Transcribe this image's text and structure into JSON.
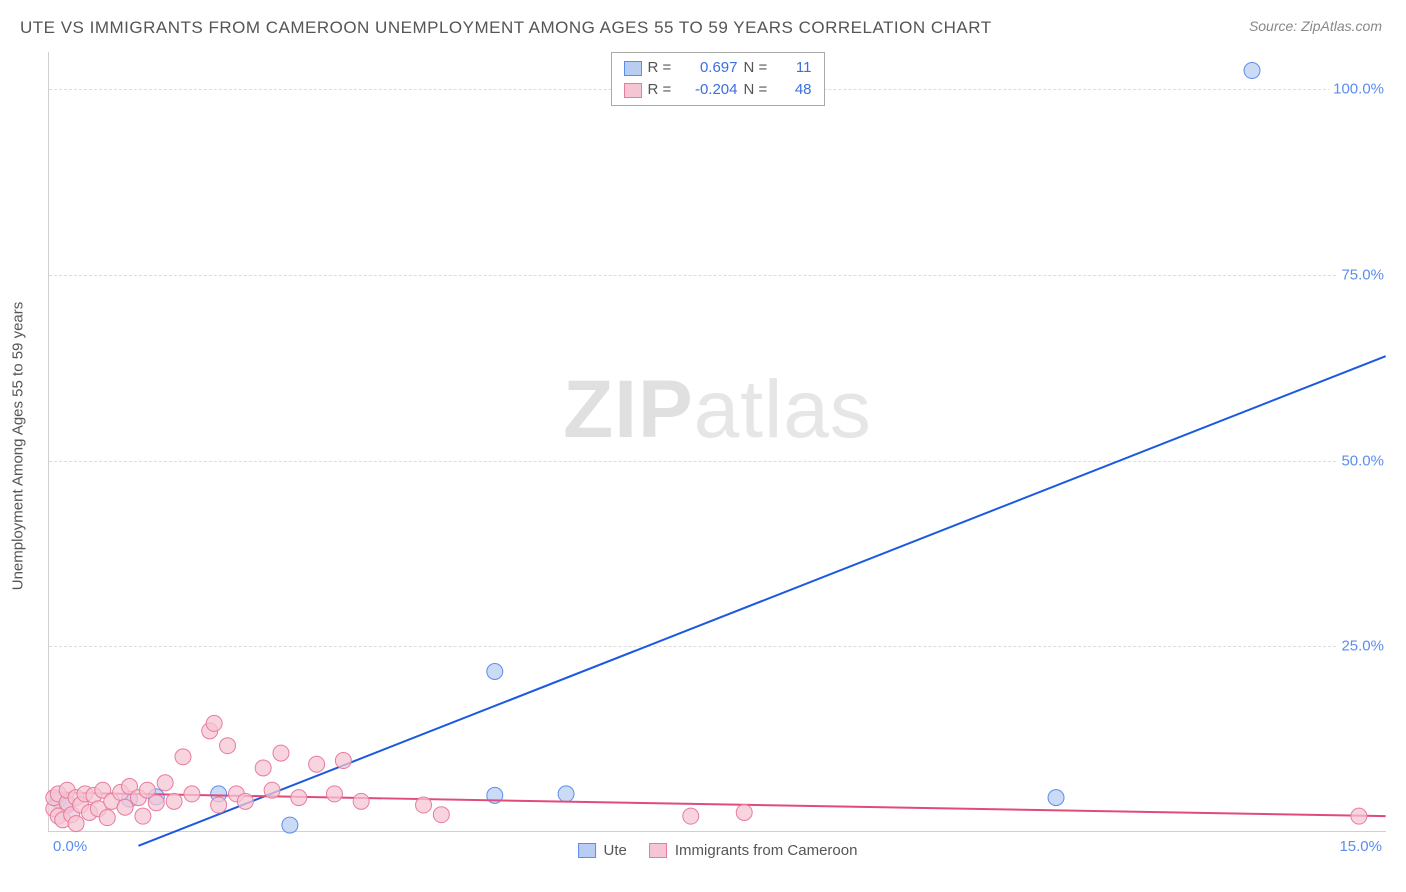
{
  "title": "UTE VS IMMIGRANTS FROM CAMEROON UNEMPLOYMENT AMONG AGES 55 TO 59 YEARS CORRELATION CHART",
  "source": "Source: ZipAtlas.com",
  "ylabel": "Unemployment Among Ages 55 to 59 years",
  "watermark_a": "ZIP",
  "watermark_b": "atlas",
  "chart": {
    "type": "scatter-regression",
    "xlim": [
      0,
      15
    ],
    "ylim": [
      0,
      105
    ],
    "yticks": [
      25,
      50,
      75,
      100
    ],
    "ytick_labels": [
      "25.0%",
      "50.0%",
      "75.0%",
      "100.0%"
    ],
    "xtick_min_label": "0.0%",
    "xtick_max_label": "15.0%",
    "background": "#ffffff",
    "grid_color": "#dcdcdc",
    "axis_color": "#d0d0d0",
    "tick_label_color": "#5b8def"
  },
  "series": [
    {
      "name": "Ute",
      "color_fill": "#b9cdf2",
      "color_stroke": "#5b8def",
      "line_color": "#1b5ae0",
      "line_width": 2,
      "marker_r": 8,
      "R": "0.697",
      "N": "11",
      "reg_line": {
        "x1": 1.0,
        "y1": -2,
        "x2": 15.0,
        "y2": 64
      },
      "points": [
        {
          "x": 0.1,
          "y": 4.2
        },
        {
          "x": 0.2,
          "y": 3.5
        },
        {
          "x": 0.9,
          "y": 4.3
        },
        {
          "x": 1.2,
          "y": 4.6
        },
        {
          "x": 1.9,
          "y": 5.0
        },
        {
          "x": 2.7,
          "y": 0.8
        },
        {
          "x": 5.0,
          "y": 4.8
        },
        {
          "x": 5.0,
          "y": 21.5
        },
        {
          "x": 5.8,
          "y": 5.0
        },
        {
          "x": 11.3,
          "y": 4.5
        },
        {
          "x": 13.5,
          "y": 102.5
        }
      ]
    },
    {
      "name": "Immigrants from Cameroon",
      "color_fill": "#f6c5d3",
      "color_stroke": "#e87ba0",
      "line_color": "#e04b7a",
      "line_width": 2,
      "marker_r": 8,
      "R": "-0.204",
      "N": "48",
      "reg_line": {
        "x1": 0,
        "y1": 5.2,
        "x2": 15.0,
        "y2": 2.0
      },
      "points": [
        {
          "x": 0.05,
          "y": 3.0
        },
        {
          "x": 0.05,
          "y": 4.5
        },
        {
          "x": 0.1,
          "y": 2.0
        },
        {
          "x": 0.1,
          "y": 5.0
        },
        {
          "x": 0.15,
          "y": 1.5
        },
        {
          "x": 0.2,
          "y": 3.8
        },
        {
          "x": 0.2,
          "y": 5.5
        },
        {
          "x": 0.25,
          "y": 2.2
        },
        {
          "x": 0.3,
          "y": 4.5
        },
        {
          "x": 0.3,
          "y": 1.0
        },
        {
          "x": 0.35,
          "y": 3.5
        },
        {
          "x": 0.4,
          "y": 5.0
        },
        {
          "x": 0.45,
          "y": 2.5
        },
        {
          "x": 0.5,
          "y": 4.8
        },
        {
          "x": 0.55,
          "y": 3.0
        },
        {
          "x": 0.6,
          "y": 5.5
        },
        {
          "x": 0.65,
          "y": 1.8
        },
        {
          "x": 0.7,
          "y": 4.0
        },
        {
          "x": 0.8,
          "y": 5.2
        },
        {
          "x": 0.85,
          "y": 3.2
        },
        {
          "x": 0.9,
          "y": 6.0
        },
        {
          "x": 1.0,
          "y": 4.5
        },
        {
          "x": 1.05,
          "y": 2.0
        },
        {
          "x": 1.1,
          "y": 5.5
        },
        {
          "x": 1.2,
          "y": 3.8
        },
        {
          "x": 1.3,
          "y": 6.5
        },
        {
          "x": 1.4,
          "y": 4.0
        },
        {
          "x": 1.5,
          "y": 10.0
        },
        {
          "x": 1.6,
          "y": 5.0
        },
        {
          "x": 1.8,
          "y": 13.5
        },
        {
          "x": 1.85,
          "y": 14.5
        },
        {
          "x": 1.9,
          "y": 3.5
        },
        {
          "x": 2.0,
          "y": 11.5
        },
        {
          "x": 2.1,
          "y": 5.0
        },
        {
          "x": 2.2,
          "y": 4.0
        },
        {
          "x": 2.4,
          "y": 8.5
        },
        {
          "x": 2.5,
          "y": 5.5
        },
        {
          "x": 2.6,
          "y": 10.5
        },
        {
          "x": 2.8,
          "y": 4.5
        },
        {
          "x": 3.0,
          "y": 9.0
        },
        {
          "x": 3.2,
          "y": 5.0
        },
        {
          "x": 3.3,
          "y": 9.5
        },
        {
          "x": 3.5,
          "y": 4.0
        },
        {
          "x": 4.2,
          "y": 3.5
        },
        {
          "x": 4.4,
          "y": 2.2
        },
        {
          "x": 7.2,
          "y": 2.0
        },
        {
          "x": 7.8,
          "y": 2.5
        },
        {
          "x": 14.7,
          "y": 2.0
        }
      ]
    }
  ],
  "legend": {
    "items": [
      {
        "label": "Ute",
        "fill": "#b9cdf2",
        "stroke": "#5b8def"
      },
      {
        "label": "Immigrants from Cameroon",
        "fill": "#f6c5d3",
        "stroke": "#e87ba0"
      }
    ]
  },
  "stats_labels": {
    "r": "R =",
    "n": "N ="
  }
}
